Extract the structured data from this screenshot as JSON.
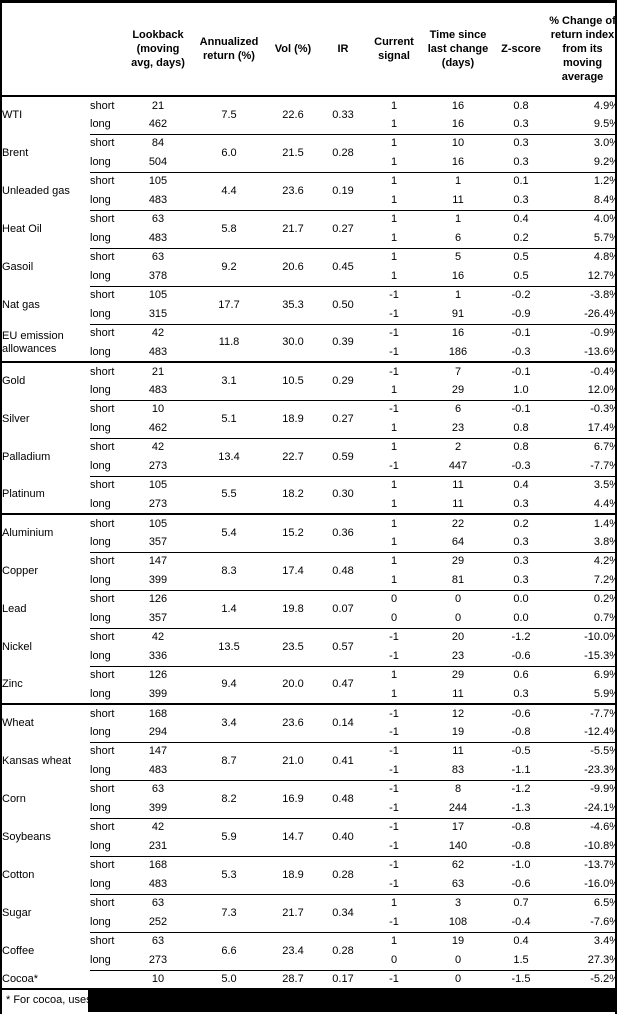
{
  "colors": {
    "border": "#000000",
    "text": "#000000",
    "background": "#ffffff",
    "redaction": "#000000"
  },
  "footnote": {
    "visible_text": "* For cocoa, uses"
  },
  "table": {
    "headers": [
      {
        "id": "commodity",
        "label": ""
      },
      {
        "id": "position",
        "label": ""
      },
      {
        "id": "lookback",
        "label": "Lookback (moving avg, days)"
      },
      {
        "id": "annualized_return",
        "label": "Annualized return (%)"
      },
      {
        "id": "vol",
        "label": "Vol (%)"
      },
      {
        "id": "ir",
        "label": "IR"
      },
      {
        "id": "current_signal",
        "label": "Current signal"
      },
      {
        "id": "time_since",
        "label": "Time since last change (days)"
      },
      {
        "id": "zscore",
        "label": "Z-score"
      },
      {
        "id": "pct_change",
        "label": "% Change of return index from its moving average"
      }
    ],
    "position_labels": {
      "short": "short",
      "long": "long"
    },
    "rows": [
      {
        "name": "WTI",
        "section": false,
        "ann": "7.5",
        "vol": "22.6",
        "ir": "0.33",
        "short": {
          "lookback": "21",
          "signal": "1",
          "time": "16",
          "z": "0.8",
          "pct": "4.9%"
        },
        "long": {
          "lookback": "462",
          "signal": "1",
          "time": "16",
          "z": "0.3",
          "pct": "9.5%"
        }
      },
      {
        "name": "Brent",
        "section": false,
        "ann": "6.0",
        "vol": "21.5",
        "ir": "0.28",
        "short": {
          "lookback": "84",
          "signal": "1",
          "time": "10",
          "z": "0.3",
          "pct": "3.0%"
        },
        "long": {
          "lookback": "504",
          "signal": "1",
          "time": "16",
          "z": "0.3",
          "pct": "9.2%"
        }
      },
      {
        "name": "Unleaded gas",
        "section": false,
        "ann": "4.4",
        "vol": "23.6",
        "ir": "0.19",
        "short": {
          "lookback": "105",
          "signal": "1",
          "time": "1",
          "z": "0.1",
          "pct": "1.2%"
        },
        "long": {
          "lookback": "483",
          "signal": "1",
          "time": "11",
          "z": "0.3",
          "pct": "8.4%"
        }
      },
      {
        "name": "Heat Oil",
        "section": false,
        "ann": "5.8",
        "vol": "21.7",
        "ir": "0.27",
        "short": {
          "lookback": "63",
          "signal": "1",
          "time": "1",
          "z": "0.4",
          "pct": "4.0%"
        },
        "long": {
          "lookback": "483",
          "signal": "1",
          "time": "6",
          "z": "0.2",
          "pct": "5.7%"
        }
      },
      {
        "name": "Gasoil",
        "section": false,
        "ann": "9.2",
        "vol": "20.6",
        "ir": "0.45",
        "short": {
          "lookback": "63",
          "signal": "1",
          "time": "5",
          "z": "0.5",
          "pct": "4.8%"
        },
        "long": {
          "lookback": "378",
          "signal": "1",
          "time": "16",
          "z": "0.5",
          "pct": "12.7%"
        }
      },
      {
        "name": "Nat gas",
        "section": false,
        "ann": "17.7",
        "vol": "35.3",
        "ir": "0.50",
        "short": {
          "lookback": "105",
          "signal": "-1",
          "time": "1",
          "z": "-0.2",
          "pct": "-3.8%"
        },
        "long": {
          "lookback": "315",
          "signal": "-1",
          "time": "91",
          "z": "-0.9",
          "pct": "-26.4%"
        }
      },
      {
        "name": "EU emission allowances",
        "section": false,
        "ann": "11.8",
        "vol": "30.0",
        "ir": "0.39",
        "short": {
          "lookback": "42",
          "signal": "-1",
          "time": "16",
          "z": "-0.1",
          "pct": "-0.9%"
        },
        "long": {
          "lookback": "483",
          "signal": "-1",
          "time": "186",
          "z": "-0.3",
          "pct": "-13.6%"
        }
      },
      {
        "name": "Gold",
        "section": true,
        "ann": "3.1",
        "vol": "10.5",
        "ir": "0.29",
        "short": {
          "lookback": "21",
          "signal": "-1",
          "time": "7",
          "z": "-0.1",
          "pct": "-0.4%"
        },
        "long": {
          "lookback": "483",
          "signal": "1",
          "time": "29",
          "z": "1.0",
          "pct": "12.0%"
        }
      },
      {
        "name": "Silver",
        "section": false,
        "ann": "5.1",
        "vol": "18.9",
        "ir": "0.27",
        "short": {
          "lookback": "10",
          "signal": "-1",
          "time": "6",
          "z": "-0.1",
          "pct": "-0.3%"
        },
        "long": {
          "lookback": "462",
          "signal": "1",
          "time": "23",
          "z": "0.8",
          "pct": "17.4%"
        }
      },
      {
        "name": "Palladium",
        "section": false,
        "ann": "13.4",
        "vol": "22.7",
        "ir": "0.59",
        "short": {
          "lookback": "42",
          "signal": "1",
          "time": "2",
          "z": "0.8",
          "pct": "6.7%"
        },
        "long": {
          "lookback": "273",
          "signal": "-1",
          "time": "447",
          "z": "-0.3",
          "pct": "-7.7%"
        }
      },
      {
        "name": "Platinum",
        "section": false,
        "ann": "5.5",
        "vol": "18.2",
        "ir": "0.30",
        "short": {
          "lookback": "105",
          "signal": "1",
          "time": "11",
          "z": "0.4",
          "pct": "3.5%"
        },
        "long": {
          "lookback": "273",
          "signal": "1",
          "time": "11",
          "z": "0.3",
          "pct": "4.4%"
        }
      },
      {
        "name": "Aluminium",
        "section": true,
        "ann": "5.4",
        "vol": "15.2",
        "ir": "0.36",
        "short": {
          "lookback": "105",
          "signal": "1",
          "time": "22",
          "z": "0.2",
          "pct": "1.4%"
        },
        "long": {
          "lookback": "357",
          "signal": "1",
          "time": "64",
          "z": "0.3",
          "pct": "3.8%"
        }
      },
      {
        "name": "Copper",
        "section": false,
        "ann": "8.3",
        "vol": "17.4",
        "ir": "0.48",
        "short": {
          "lookback": "147",
          "signal": "1",
          "time": "29",
          "z": "0.3",
          "pct": "4.2%"
        },
        "long": {
          "lookback": "399",
          "signal": "1",
          "time": "81",
          "z": "0.3",
          "pct": "7.2%"
        }
      },
      {
        "name": "Lead",
        "section": false,
        "ann": "1.4",
        "vol": "19.8",
        "ir": "0.07",
        "short": {
          "lookback": "126",
          "signal": "0",
          "time": "0",
          "z": "0.0",
          "pct": "0.2%"
        },
        "long": {
          "lookback": "357",
          "signal": "0",
          "time": "0",
          "z": "0.0",
          "pct": "0.7%"
        }
      },
      {
        "name": "Nickel",
        "section": false,
        "ann": "13.5",
        "vol": "23.5",
        "ir": "0.57",
        "short": {
          "lookback": "42",
          "signal": "-1",
          "time": "20",
          "z": "-1.2",
          "pct": "-10.0%"
        },
        "long": {
          "lookback": "336",
          "signal": "-1",
          "time": "23",
          "z": "-0.6",
          "pct": "-15.3%"
        }
      },
      {
        "name": "Zinc",
        "section": false,
        "ann": "9.4",
        "vol": "20.0",
        "ir": "0.47",
        "short": {
          "lookback": "126",
          "signal": "1",
          "time": "29",
          "z": "0.6",
          "pct": "6.9%"
        },
        "long": {
          "lookback": "399",
          "signal": "1",
          "time": "11",
          "z": "0.3",
          "pct": "5.9%"
        }
      },
      {
        "name": "Wheat",
        "section": true,
        "ann": "3.4",
        "vol": "23.6",
        "ir": "0.14",
        "short": {
          "lookback": "168",
          "signal": "-1",
          "time": "12",
          "z": "-0.6",
          "pct": "-7.7%"
        },
        "long": {
          "lookback": "294",
          "signal": "-1",
          "time": "19",
          "z": "-0.8",
          "pct": "-12.4%"
        }
      },
      {
        "name": "Kansas wheat",
        "section": false,
        "ann": "8.7",
        "vol": "21.0",
        "ir": "0.41",
        "short": {
          "lookback": "147",
          "signal": "-1",
          "time": "11",
          "z": "-0.5",
          "pct": "-5.5%"
        },
        "long": {
          "lookback": "483",
          "signal": "-1",
          "time": "83",
          "z": "-1.1",
          "pct": "-23.3%"
        }
      },
      {
        "name": "Corn",
        "section": false,
        "ann": "8.2",
        "vol": "16.9",
        "ir": "0.48",
        "short": {
          "lookback": "63",
          "signal": "-1",
          "time": "8",
          "z": "-1.2",
          "pct": "-9.9%"
        },
        "long": {
          "lookback": "399",
          "signal": "-1",
          "time": "244",
          "z": "-1.3",
          "pct": "-24.1%"
        }
      },
      {
        "name": "Soybeans",
        "section": false,
        "ann": "5.9",
        "vol": "14.7",
        "ir": "0.40",
        "short": {
          "lookback": "42",
          "signal": "-1",
          "time": "17",
          "z": "-0.8",
          "pct": "-4.6%"
        },
        "long": {
          "lookback": "231",
          "signal": "-1",
          "time": "140",
          "z": "-0.8",
          "pct": "-10.8%"
        }
      },
      {
        "name": "Cotton",
        "section": false,
        "ann": "5.3",
        "vol": "18.9",
        "ir": "0.28",
        "short": {
          "lookback": "168",
          "signal": "-1",
          "time": "62",
          "z": "-1.0",
          "pct": "-13.7%"
        },
        "long": {
          "lookback": "483",
          "signal": "-1",
          "time": "63",
          "z": "-0.6",
          "pct": "-16.0%"
        }
      },
      {
        "name": "Sugar",
        "section": false,
        "ann": "7.3",
        "vol": "21.7",
        "ir": "0.34",
        "short": {
          "lookback": "63",
          "signal": "1",
          "time": "3",
          "z": "0.7",
          "pct": "6.5%"
        },
        "long": {
          "lookback": "252",
          "signal": "-1",
          "time": "108",
          "z": "-0.4",
          "pct": "-7.6%"
        }
      },
      {
        "name": "Coffee",
        "section": false,
        "ann": "6.6",
        "vol": "23.4",
        "ir": "0.28",
        "short": {
          "lookback": "63",
          "signal": "1",
          "time": "19",
          "z": "0.4",
          "pct": "3.4%"
        },
        "long": {
          "lookback": "273",
          "signal": "0",
          "time": "0",
          "z": "1.5",
          "pct": "27.3%"
        }
      },
      {
        "name": "Cocoa*",
        "section": false,
        "single": true,
        "lookback": "10",
        "ann": "5.0",
        "vol": "28.7",
        "ir": "0.17",
        "signal": "-1",
        "time": "0",
        "z": "-1.5",
        "pct": "-5.2%"
      }
    ]
  }
}
